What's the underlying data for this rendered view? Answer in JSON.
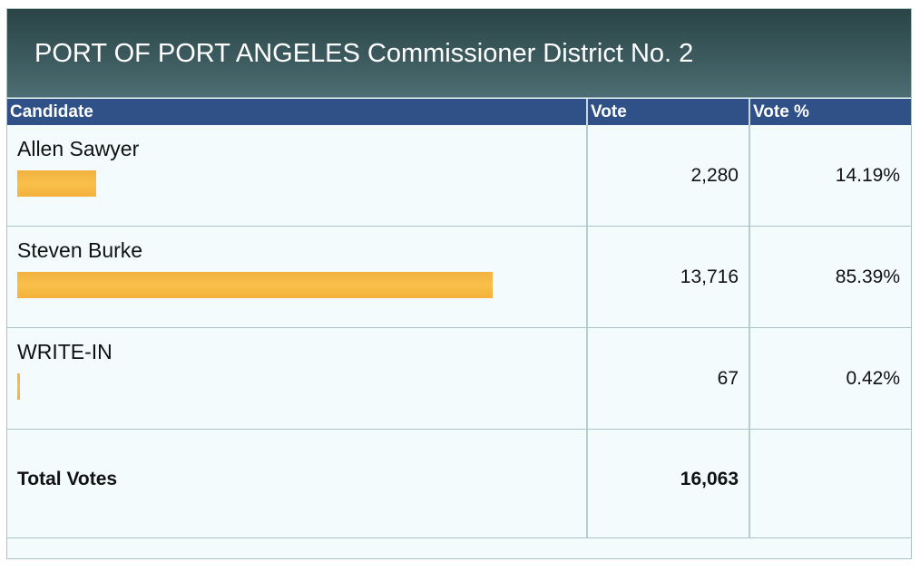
{
  "race": {
    "title": "PORT OF PORT ANGELES Commissioner District No. 2"
  },
  "columns": {
    "candidate": "Candidate",
    "vote": "Vote",
    "vote_pct": "Vote %"
  },
  "candidates": [
    {
      "name": "Allen Sawyer",
      "votes": "2,280",
      "percent": "14.19%",
      "share": 0.1419
    },
    {
      "name": "Steven Burke",
      "votes": "13,716",
      "percent": "85.39%",
      "share": 0.8539
    },
    {
      "name": "WRITE-IN",
      "votes": "67",
      "percent": "0.42%",
      "share": 0.0042
    }
  ],
  "total": {
    "label": "Total Votes",
    "votes": "16,063"
  },
  "colors": {
    "bar": "#f8c04a",
    "header_bar": "#2f5187",
    "title_band": "#3c5a5e"
  }
}
